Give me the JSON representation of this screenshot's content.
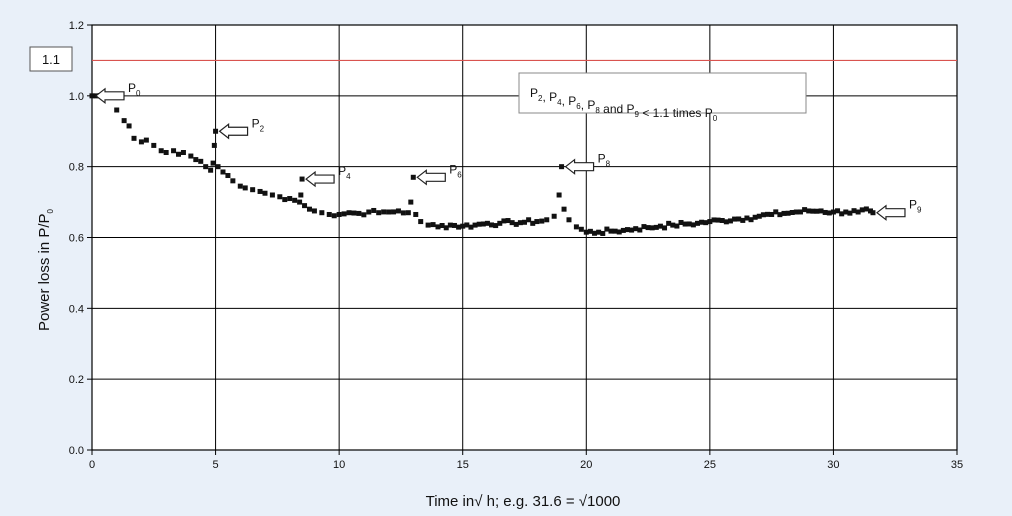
{
  "chart_data": {
    "type": "scatter",
    "title": "",
    "xlabel": "Time in√ h; e.g. 31.6 = √1000",
    "ylabel": "Power loss in  P/P",
    "ylabel_sub": "0",
    "xlim": [
      0,
      35
    ],
    "ylim": [
      0.0,
      1.2
    ],
    "x_ticks": [
      "0",
      "5",
      "10",
      "15",
      "20",
      "25",
      "30",
      "35"
    ],
    "y_ticks": [
      "0.0",
      "0.2",
      "0.4",
      "0.6",
      "0.8",
      "1.0",
      "1.2"
    ],
    "grid": true,
    "reference_line": {
      "y": 1.1,
      "label": "1.1",
      "color": "#d9534f"
    },
    "marker_color": "#111111",
    "note": {
      "parts": [
        [
          "P",
          "2"
        ],
        [
          ", P",
          "4"
        ],
        [
          ", P",
          "6"
        ],
        [
          ", P",
          "8"
        ],
        [
          " and P",
          "9"
        ],
        [
          " < 1.1 times P",
          "0"
        ]
      ]
    },
    "callouts": [
      {
        "label": "P",
        "sub": "0",
        "x": 0.0,
        "y": 1.0
      },
      {
        "label": "P",
        "sub": "2",
        "x": 5.0,
        "y": 0.9
      },
      {
        "label": "P",
        "sub": "4",
        "x": 8.5,
        "y": 0.765
      },
      {
        "label": "P",
        "sub": "6",
        "x": 13.0,
        "y": 0.77
      },
      {
        "label": "P",
        "sub": "8",
        "x": 19.0,
        "y": 0.8
      },
      {
        "label": "P",
        "sub": "9",
        "x": 31.6,
        "y": 0.67
      }
    ],
    "series": [
      {
        "points": [
          [
            0.0,
            1.0
          ],
          [
            0.5,
            1.0
          ],
          [
            1.0,
            0.96
          ],
          [
            1.3,
            0.93
          ],
          [
            1.5,
            0.915
          ],
          [
            1.7,
            0.88
          ],
          [
            2.0,
            0.87
          ],
          [
            2.2,
            0.875
          ],
          [
            2.5,
            0.86
          ],
          [
            2.8,
            0.845
          ],
          [
            3.0,
            0.84
          ],
          [
            3.3,
            0.845
          ],
          [
            3.5,
            0.835
          ],
          [
            3.7,
            0.84
          ],
          [
            4.0,
            0.83
          ],
          [
            4.2,
            0.82
          ],
          [
            4.4,
            0.815
          ],
          [
            4.6,
            0.8
          ],
          [
            4.8,
            0.79
          ],
          [
            4.9,
            0.81
          ],
          [
            4.95,
            0.86
          ],
          [
            5.0,
            0.9
          ],
          [
            5.1,
            0.8
          ],
          [
            5.3,
            0.785
          ],
          [
            5.5,
            0.775
          ],
          [
            5.7,
            0.76
          ],
          [
            6.0,
            0.745
          ],
          [
            6.2,
            0.74
          ],
          [
            6.5,
            0.735
          ],
          [
            6.8,
            0.73
          ],
          [
            7.0,
            0.725
          ],
          [
            7.3,
            0.72
          ],
          [
            7.6,
            0.715
          ],
          [
            8.0,
            0.71
          ],
          [
            8.2,
            0.705
          ],
          [
            8.4,
            0.7
          ],
          [
            8.45,
            0.72
          ],
          [
            8.5,
            0.765
          ],
          [
            8.6,
            0.69
          ],
          [
            8.8,
            0.68
          ],
          [
            9.0,
            0.675
          ],
          [
            9.3,
            0.67
          ],
          [
            9.6,
            0.665
          ],
          [
            10.0,
            0.665
          ],
          [
            10.4,
            0.67
          ],
          [
            10.8,
            0.668
          ],
          [
            11.2,
            0.672
          ],
          [
            11.6,
            0.67
          ],
          [
            12.0,
            0.672
          ],
          [
            12.4,
            0.675
          ],
          [
            12.8,
            0.67
          ],
          [
            12.9,
            0.7
          ],
          [
            13.0,
            0.77
          ],
          [
            13.1,
            0.665
          ],
          [
            13.3,
            0.645
          ],
          [
            13.6,
            0.635
          ],
          [
            14.0,
            0.63
          ],
          [
            14.5,
            0.635
          ],
          [
            15.0,
            0.632
          ],
          [
            15.5,
            0.635
          ],
          [
            16.0,
            0.64
          ],
          [
            16.5,
            0.64
          ],
          [
            17.0,
            0.642
          ],
          [
            17.5,
            0.643
          ],
          [
            18.0,
            0.645
          ],
          [
            18.4,
            0.65
          ],
          [
            18.7,
            0.66
          ],
          [
            18.9,
            0.72
          ],
          [
            19.0,
            0.8
          ],
          [
            19.1,
            0.68
          ],
          [
            19.3,
            0.65
          ],
          [
            19.6,
            0.63
          ],
          [
            20.0,
            0.615
          ],
          [
            20.5,
            0.615
          ],
          [
            21.0,
            0.618
          ],
          [
            21.5,
            0.62
          ],
          [
            22.0,
            0.625
          ],
          [
            22.5,
            0.628
          ],
          [
            23.0,
            0.632
          ],
          [
            23.5,
            0.635
          ],
          [
            24.0,
            0.638
          ],
          [
            24.5,
            0.64
          ],
          [
            25.0,
            0.645
          ],
          [
            25.5,
            0.648
          ],
          [
            26.0,
            0.652
          ],
          [
            26.5,
            0.655
          ],
          [
            27.0,
            0.66
          ],
          [
            27.5,
            0.665
          ],
          [
            28.0,
            0.668
          ],
          [
            28.5,
            0.672
          ],
          [
            29.0,
            0.675
          ],
          [
            29.5,
            0.675
          ],
          [
            30.0,
            0.672
          ],
          [
            30.5,
            0.672
          ],
          [
            31.0,
            0.672
          ],
          [
            31.5,
            0.675
          ],
          [
            31.6,
            0.67
          ]
        ]
      }
    ]
  }
}
